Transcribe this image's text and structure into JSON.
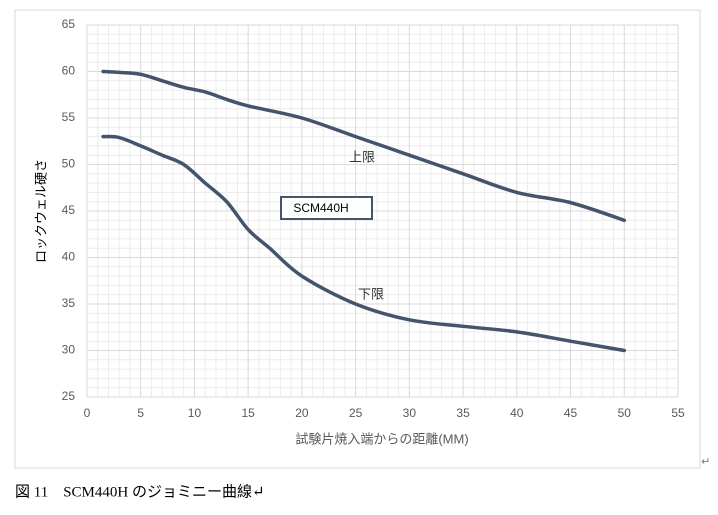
{
  "chart_data": {
    "type": "line",
    "x_label": "試験片焼入端からの距離(MM)",
    "y_label": "ロックウェル硬さ",
    "series": [
      {
        "name": "上限",
        "color": "#44546a",
        "x": [
          1.5,
          3,
          5,
          7,
          9,
          11,
          13,
          15,
          20,
          25,
          30,
          35,
          40,
          45,
          50
        ],
        "values": [
          60,
          59.9,
          59.7,
          59,
          58.3,
          57.8,
          57,
          56.3,
          55,
          53,
          51,
          49,
          47,
          45.9,
          44
        ]
      },
      {
        "name": "下限",
        "color": "#44546a",
        "x": [
          1.5,
          3,
          5,
          7,
          9,
          11,
          13,
          15,
          17,
          20,
          25,
          30,
          35,
          40,
          45,
          50
        ],
        "values": [
          53,
          52.9,
          52,
          51,
          50,
          48,
          46,
          43,
          41,
          38,
          35,
          33.3,
          32.6,
          32,
          31,
          30
        ]
      }
    ],
    "annotation": "SCM440H",
    "xlim": [
      0,
      55
    ],
    "xticks": [
      0,
      5,
      10,
      15,
      20,
      25,
      30,
      35,
      40,
      45,
      50,
      55
    ],
    "ylim": [
      25,
      65
    ],
    "yticks": [
      25,
      30,
      35,
      40,
      45,
      50,
      55,
      60,
      65
    ],
    "grid": true,
    "minor_grid": true
  },
  "caption": "図 11　SCM440H のジョミニー曲線↵",
  "paragraph_mark": "↵"
}
